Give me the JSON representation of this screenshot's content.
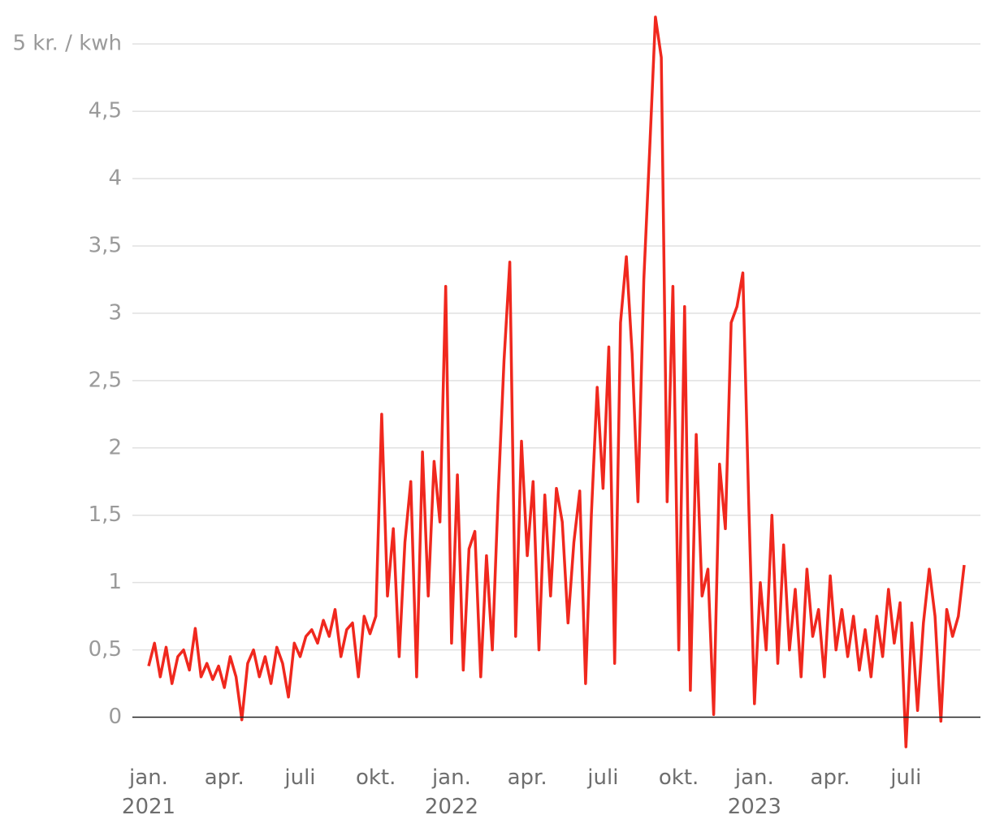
{
  "chart_data": {
    "type": "line",
    "categories": [
      [
        "jan.",
        "2021"
      ],
      null,
      null,
      null,
      null,
      null,
      null,
      null,
      null,
      null,
      null,
      null,
      null,
      [
        "apr."
      ],
      null,
      null,
      null,
      null,
      null,
      null,
      null,
      null,
      null,
      null,
      null,
      null,
      [
        "juli"
      ],
      null,
      null,
      null,
      null,
      null,
      null,
      null,
      null,
      null,
      null,
      null,
      null,
      [
        "okt."
      ],
      null,
      null,
      null,
      null,
      null,
      null,
      null,
      null,
      null,
      null,
      null,
      null,
      [
        "jan.",
        "2022"
      ],
      null,
      null,
      null,
      null,
      null,
      null,
      null,
      null,
      null,
      null,
      null,
      null,
      [
        "apr."
      ],
      null,
      null,
      null,
      null,
      null,
      null,
      null,
      null,
      null,
      null,
      null,
      null,
      [
        "juli"
      ],
      null,
      null,
      null,
      null,
      null,
      null,
      null,
      null,
      null,
      null,
      null,
      null,
      [
        "okt."
      ],
      null,
      null,
      null,
      null,
      null,
      null,
      null,
      null,
      null,
      null,
      null,
      null,
      [
        "jan.",
        "2023"
      ],
      null,
      null,
      null,
      null,
      null,
      null,
      null,
      null,
      null,
      null,
      null,
      null,
      [
        "apr."
      ],
      null,
      null,
      null,
      null,
      null,
      null,
      null,
      null,
      null,
      null,
      null,
      null,
      [
        "juli"
      ],
      null,
      null,
      null,
      null,
      null,
      null,
      null,
      null,
      null,
      null
    ],
    "values": [
      0.38,
      0.55,
      0.3,
      0.52,
      0.25,
      0.45,
      0.5,
      0.35,
      0.66,
      0.3,
      0.4,
      0.28,
      0.38,
      0.22,
      0.45,
      0.3,
      -0.02,
      0.4,
      0.5,
      0.3,
      0.45,
      0.25,
      0.52,
      0.4,
      0.15,
      0.55,
      0.45,
      0.6,
      0.65,
      0.55,
      0.72,
      0.6,
      0.8,
      0.45,
      0.65,
      0.7,
      0.3,
      0.75,
      0.62,
      0.75,
      2.25,
      0.9,
      1.4,
      0.45,
      1.3,
      1.75,
      0.3,
      1.97,
      0.9,
      1.9,
      1.45,
      3.2,
      0.55,
      1.8,
      0.35,
      1.25,
      1.38,
      0.3,
      1.2,
      0.5,
      1.65,
      2.65,
      3.38,
      0.6,
      2.05,
      1.2,
      1.75,
      0.5,
      1.65,
      0.9,
      1.7,
      1.45,
      0.7,
      1.3,
      1.68,
      0.25,
      1.5,
      2.45,
      1.7,
      2.75,
      0.4,
      2.93,
      3.42,
      2.7,
      1.6,
      3.25,
      4.2,
      5.2,
      4.9,
      1.6,
      3.2,
      0.5,
      3.05,
      0.2,
      2.1,
      0.9,
      1.1,
      0.02,
      1.88,
      1.4,
      2.93,
      3.05,
      3.3,
      1.6,
      0.1,
      1.0,
      0.5,
      1.5,
      0.4,
      1.28,
      0.5,
      0.95,
      0.3,
      1.1,
      0.6,
      0.8,
      0.3,
      1.05,
      0.5,
      0.8,
      0.45,
      0.75,
      0.35,
      0.65,
      0.3,
      0.75,
      0.45,
      0.95,
      0.55,
      0.85,
      -0.22,
      0.7,
      0.05,
      0.7,
      1.1,
      0.75,
      -0.03,
      0.8,
      0.6,
      0.75,
      1.13
    ],
    "color": "#f0281e",
    "ylim": [
      -0.25,
      5.2
    ],
    "yticks": [
      0,
      {
        "value": 0.5,
        "label": "0,5"
      },
      1,
      {
        "value": 1.5,
        "label": "1,5"
      },
      2,
      {
        "value": 2.5,
        "label": "2,5"
      },
      3,
      {
        "value": 3.5,
        "label": "3,5"
      },
      4,
      {
        "value": 4.5,
        "label": "4,5"
      },
      {
        "value": 5,
        "label": "5 kr. / kwh"
      }
    ],
    "grid": true
  }
}
